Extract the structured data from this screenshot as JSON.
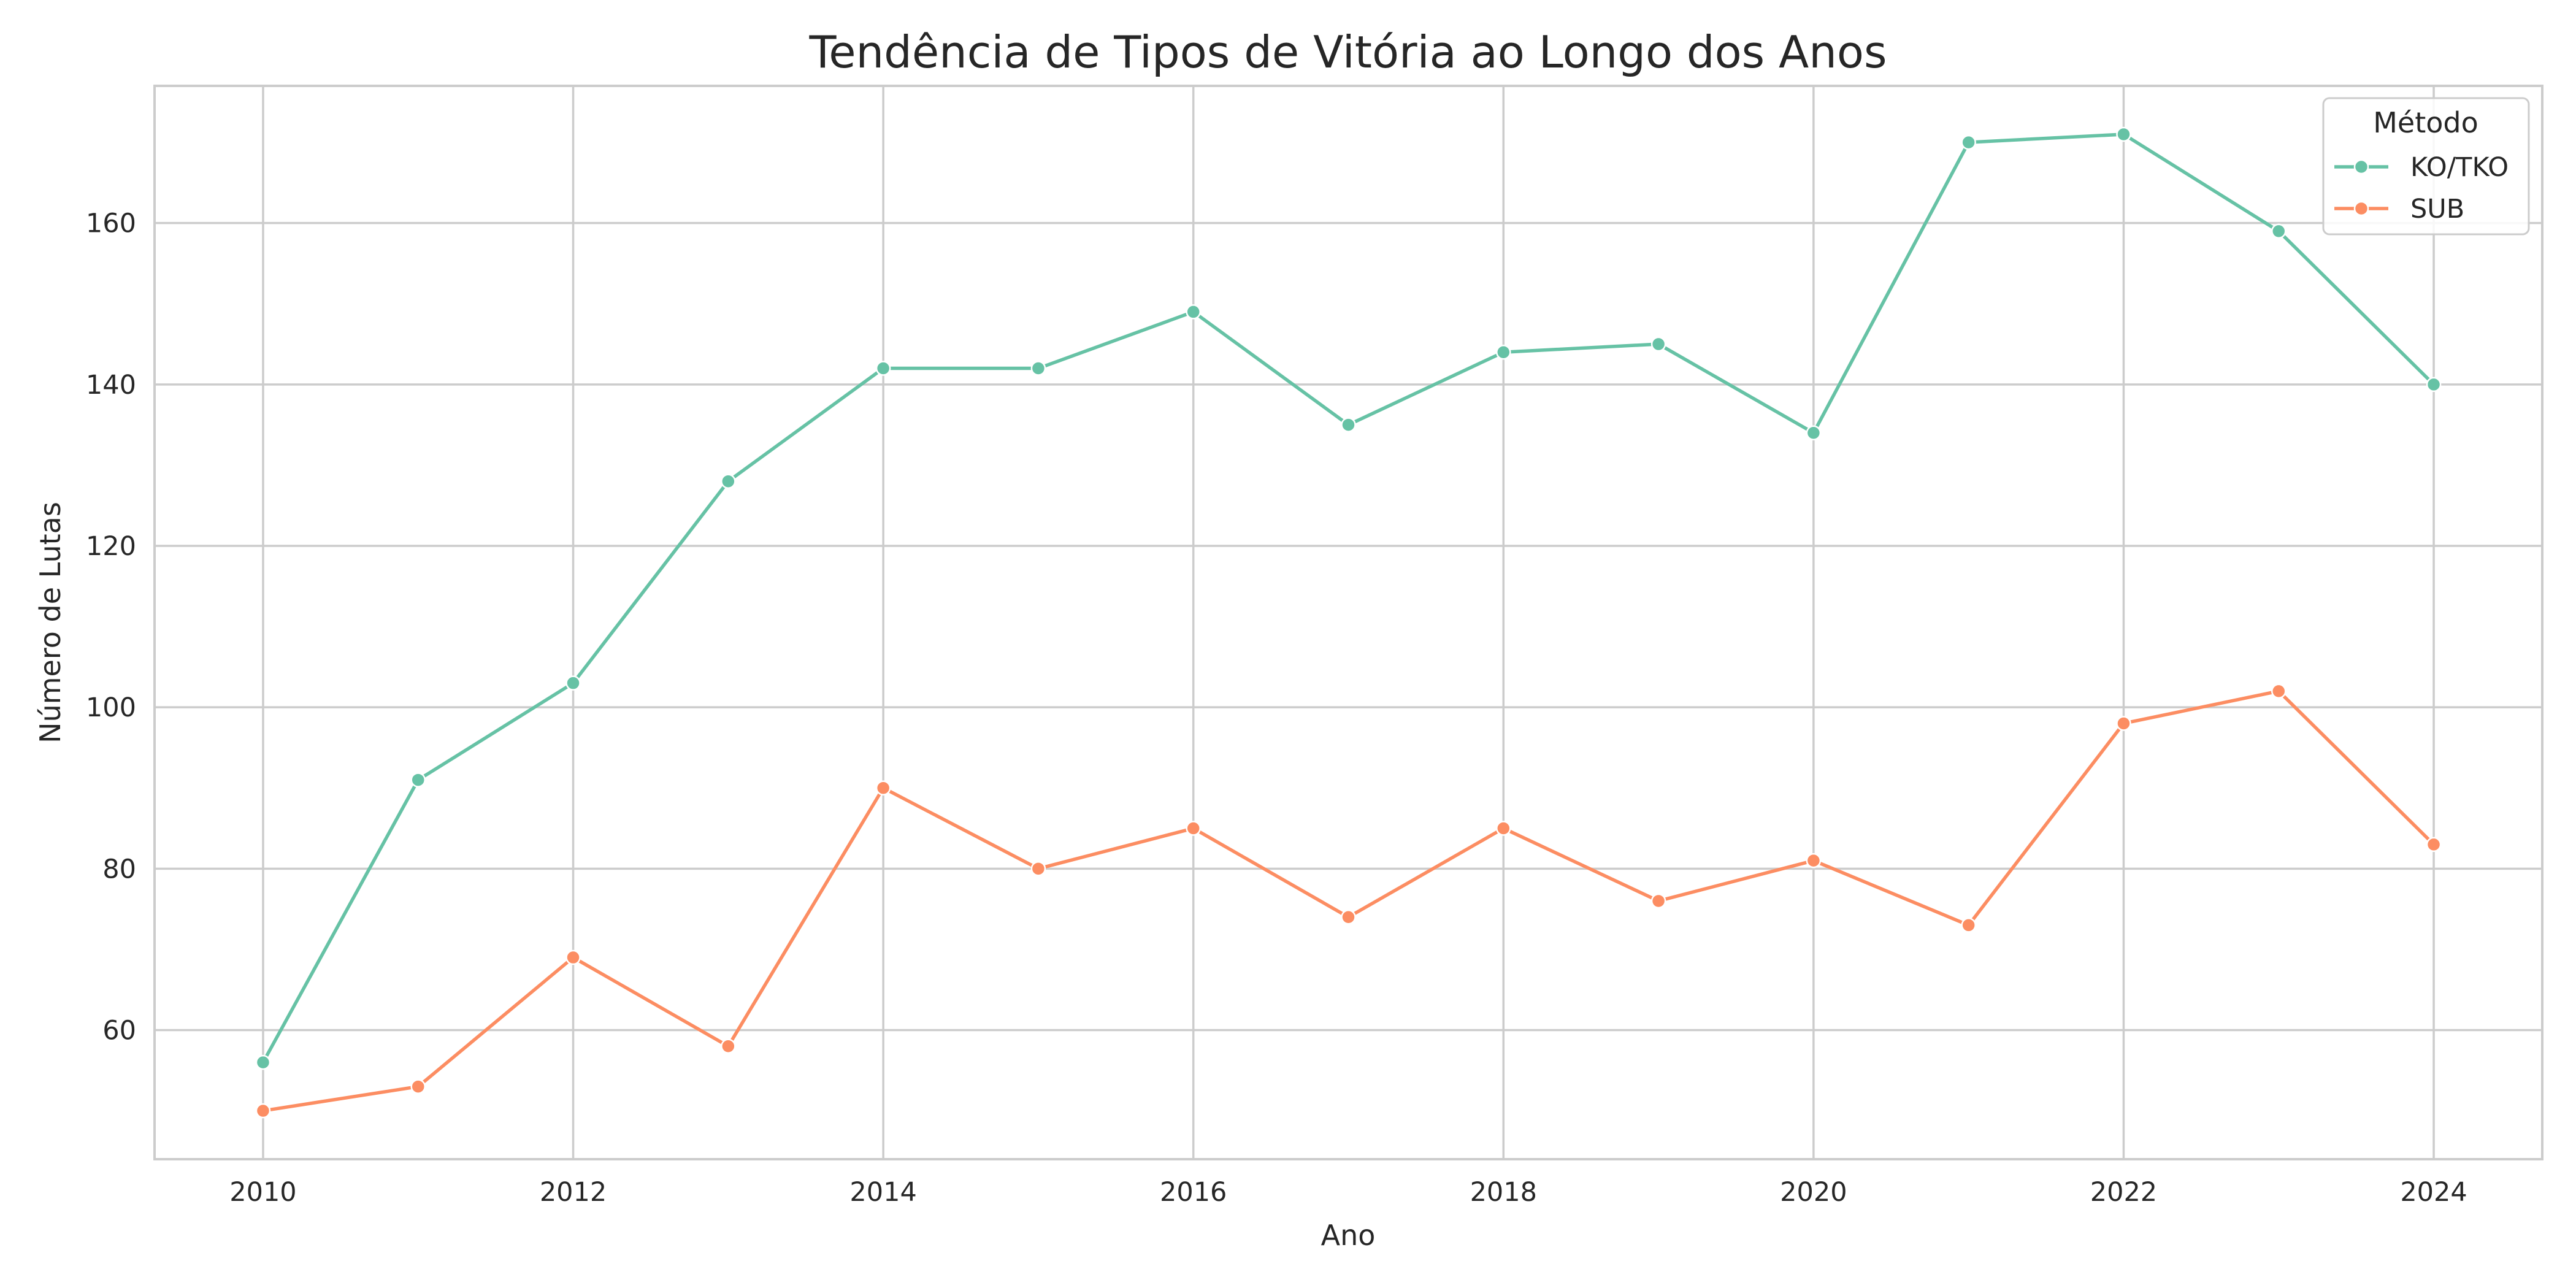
{
  "chart_data": {
    "type": "line",
    "title": "Tendência de Tipos de Vitória ao Longo dos Anos",
    "xlabel": "Ano",
    "ylabel": "Número de Lutas",
    "x": [
      2010,
      2011,
      2012,
      2013,
      2014,
      2015,
      2016,
      2017,
      2018,
      2019,
      2020,
      2021,
      2022,
      2023,
      2024
    ],
    "xlim": [
      2009.3,
      2024.7
    ],
    "ylim": [
      44,
      177
    ],
    "xticks": [
      2010,
      2012,
      2014,
      2016,
      2018,
      2020,
      2022,
      2024
    ],
    "yticks": [
      60,
      80,
      100,
      120,
      140,
      160
    ],
    "grid": true,
    "legend": {
      "title": "Método",
      "position": "top-right"
    },
    "series": [
      {
        "name": "KO/TKO",
        "color": "#66c2a5",
        "marker": "circle",
        "values": [
          56,
          91,
          103,
          128,
          142,
          142,
          149,
          135,
          144,
          145,
          134,
          170,
          171,
          159,
          140
        ]
      },
      {
        "name": "SUB",
        "color": "#fc8d62",
        "marker": "circle",
        "values": [
          50,
          53,
          69,
          58,
          90,
          80,
          85,
          74,
          85,
          76,
          81,
          73,
          98,
          102,
          83
        ]
      }
    ]
  }
}
